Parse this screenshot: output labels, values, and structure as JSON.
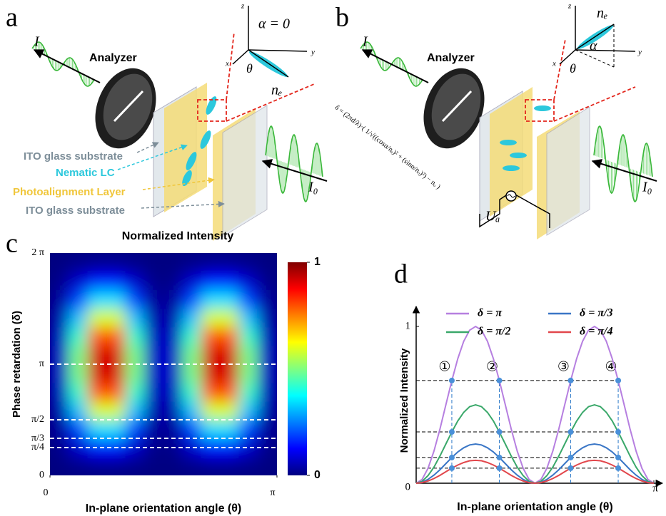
{
  "diagrams": {
    "a": {
      "label": "a",
      "analyzer": "Analyzer",
      "intensity_out": "I",
      "intensity_in": "I₀",
      "alpha": "α = 0",
      "theta": "θ",
      "director": "nₑ",
      "axes": [
        "z",
        "y",
        "x"
      ],
      "legend": [
        "ITO glass substrate",
        "Nematic LC",
        "Photoalignment Layer",
        "ITO glass substrate"
      ]
    },
    "b": {
      "label": "b",
      "analyzer": "Analyzer",
      "intensity_out": "I",
      "intensity_in": "I₀",
      "alpha": "α",
      "theta": "θ",
      "director": "nₑ",
      "axes": [
        "z",
        "y",
        "x"
      ],
      "voltage": "Uₐ",
      "formula": "δ = (2πd/λ)·( 1/√((cosα/nₑ)² + (sinα/nₒ)²) − nₒ )"
    }
  },
  "chart_data": [
    {
      "type": "heatmap",
      "panel_label": "c",
      "title": "Normalized Intensity",
      "x_label": "In-plane orientation angle (θ)",
      "y_label": "Phase retardation (δ)",
      "xlim": [
        0,
        1
      ],
      "xticks": [
        0,
        {
          "value": 1,
          "label": "π"
        }
      ],
      "ylim": [
        0,
        2
      ],
      "yticks": [
        0,
        {
          "value": 0.25,
          "label": "π/4"
        },
        {
          "value": 0.333,
          "label": "π/3"
        },
        {
          "value": 0.5,
          "label": "π/2"
        },
        {
          "value": 1,
          "label": "π"
        },
        {
          "value": 2,
          "label": "2 π"
        }
      ],
      "colorbar": {
        "lim": [
          0,
          1
        ],
        "ticks": [
          0,
          1
        ],
        "colormap": "jet"
      },
      "z": [
        [
          0.001,
          0.009,
          0.016,
          0.016,
          0.009,
          0.001,
          0.001,
          0.009,
          0.016,
          0.016,
          0.009,
          0.001
        ],
        [
          0.01,
          0.073,
          0.136,
          0.136,
          0.073,
          0.01,
          0.01,
          0.073,
          0.136,
          0.136,
          0.073,
          0.01
        ],
        [
          0.026,
          0.185,
          0.344,
          0.344,
          0.185,
          0.026,
          0.026,
          0.185,
          0.344,
          0.344,
          0.185,
          0.026
        ],
        [
          0.044,
          0.315,
          0.585,
          0.585,
          0.315,
          0.044,
          0.044,
          0.315,
          0.585,
          0.585,
          0.315,
          0.044
        ],
        [
          0.06,
          0.427,
          0.794,
          0.794,
          0.427,
          0.06,
          0.06,
          0.427,
          0.794,
          0.794,
          0.427,
          0.06
        ],
        [
          0.069,
          0.492,
          0.914,
          0.914,
          0.492,
          0.069,
          0.069,
          0.492,
          0.914,
          0.914,
          0.492,
          0.069
        ],
        [
          0.069,
          0.492,
          0.914,
          0.914,
          0.492,
          0.069,
          0.069,
          0.492,
          0.914,
          0.914,
          0.492,
          0.069
        ],
        [
          0.06,
          0.427,
          0.794,
          0.794,
          0.427,
          0.06,
          0.06,
          0.427,
          0.794,
          0.794,
          0.427,
          0.06
        ],
        [
          0.044,
          0.315,
          0.585,
          0.585,
          0.315,
          0.044,
          0.044,
          0.315,
          0.585,
          0.585,
          0.315,
          0.044
        ],
        [
          0.026,
          0.185,
          0.344,
          0.344,
          0.185,
          0.026,
          0.026,
          0.185,
          0.344,
          0.344,
          0.185,
          0.026
        ],
        [
          0.01,
          0.073,
          0.136,
          0.136,
          0.073,
          0.01,
          0.01,
          0.073,
          0.136,
          0.136,
          0.073,
          0.01
        ],
        [
          0.001,
          0.009,
          0.016,
          0.016,
          0.009,
          0.001,
          0.001,
          0.009,
          0.016,
          0.016,
          0.009,
          0.001
        ]
      ]
    },
    {
      "type": "line",
      "panel_label": "d",
      "x_label": "In-plane orientation angle (θ)",
      "y_label": "Normalized Intensity",
      "xlim": [
        0,
        1
      ],
      "xticks": [
        0,
        {
          "value": 1,
          "label": "π"
        }
      ],
      "ylim": [
        0,
        1.1
      ],
      "yticks": [
        0,
        1
      ],
      "x": [
        0,
        0.025,
        0.05,
        0.075,
        0.1,
        0.125,
        0.15,
        0.175,
        0.2,
        0.225,
        0.25,
        0.275,
        0.3,
        0.325,
        0.35,
        0.375,
        0.4,
        0.425,
        0.45,
        0.475,
        0.5,
        0.525,
        0.55,
        0.575,
        0.6,
        0.625,
        0.65,
        0.675,
        0.7,
        0.725,
        0.75,
        0.775,
        0.8,
        0.825,
        0.85,
        0.875,
        0.9,
        0.925,
        0.95,
        0.975,
        1
      ],
      "series": [
        {
          "name": "δ = π",
          "color": "#b67fe0",
          "values": [
            0,
            0.024,
            0.095,
            0.206,
            0.345,
            0.5,
            0.655,
            0.794,
            0.905,
            0.976,
            1,
            0.976,
            0.905,
            0.794,
            0.655,
            0.5,
            0.345,
            0.206,
            0.095,
            0.024,
            0,
            0.024,
            0.095,
            0.206,
            0.345,
            0.5,
            0.655,
            0.794,
            0.905,
            0.976,
            1,
            0.976,
            0.905,
            0.794,
            0.655,
            0.5,
            0.345,
            0.206,
            0.095,
            0.024,
            0
          ]
        },
        {
          "name": "δ = π/2",
          "color": "#3aa86a",
          "values": [
            0,
            0.012,
            0.048,
            0.103,
            0.173,
            0.25,
            0.327,
            0.397,
            0.452,
            0.488,
            0.5,
            0.488,
            0.452,
            0.397,
            0.327,
            0.25,
            0.173,
            0.103,
            0.048,
            0.012,
            0,
            0.012,
            0.048,
            0.103,
            0.173,
            0.25,
            0.327,
            0.397,
            0.452,
            0.488,
            0.5,
            0.488,
            0.452,
            0.397,
            0.327,
            0.25,
            0.173,
            0.103,
            0.048,
            0.012,
            0
          ]
        },
        {
          "name": "δ = π/3",
          "color": "#3a76c6",
          "values": [
            0,
            0.006,
            0.024,
            0.052,
            0.086,
            0.125,
            0.164,
            0.199,
            0.226,
            0.244,
            0.25,
            0.244,
            0.226,
            0.199,
            0.164,
            0.125,
            0.086,
            0.052,
            0.024,
            0.006,
            0,
            0.006,
            0.024,
            0.052,
            0.086,
            0.125,
            0.164,
            0.199,
            0.226,
            0.244,
            0.25,
            0.244,
            0.226,
            0.199,
            0.164,
            0.125,
            0.086,
            0.052,
            0.024,
            0.006,
            0
          ]
        },
        {
          "name": "δ = π/4",
          "color": "#e2474c",
          "values": [
            0,
            0.004,
            0.014,
            0.03,
            0.05,
            0.073,
            0.096,
            0.116,
            0.132,
            0.143,
            0.146,
            0.143,
            0.132,
            0.116,
            0.096,
            0.073,
            0.05,
            0.03,
            0.014,
            0.004,
            0,
            0.004,
            0.014,
            0.03,
            0.05,
            0.073,
            0.096,
            0.116,
            0.132,
            0.143,
            0.146,
            0.143,
            0.132,
            0.116,
            0.096,
            0.073,
            0.05,
            0.03,
            0.014,
            0.004,
            0
          ]
        }
      ],
      "annotations": [
        {
          "text": "①",
          "x": 0.15
        },
        {
          "text": "②",
          "x": 0.35
        },
        {
          "text": "③",
          "x": 0.65
        },
        {
          "text": "④",
          "x": 0.85
        }
      ]
    }
  ]
}
